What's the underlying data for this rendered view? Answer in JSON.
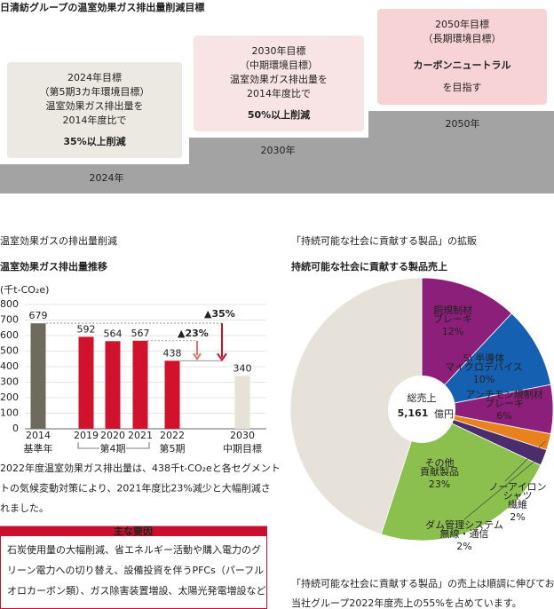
{
  "header": {
    "title": "日清紡グループの温室効果ガス排出量削減目標"
  },
  "targets": [
    {
      "year": "2024年",
      "lines": [
        "2024年目標",
        "（第5期3カ年環境目標）",
        "温室効果ガス排出量を",
        "2014年度比で"
      ],
      "goal": "35%以上削減"
    },
    {
      "year": "2030年",
      "lines": [
        "2030年目標",
        "（中期環境目標）",
        "温室効果ガス排出量を",
        "2014年度比で"
      ],
      "goal": "50%以上削減"
    },
    {
      "year": "2050年",
      "lines": [
        "2050年目標",
        "（長期環境目標）"
      ],
      "goal": "カーボンニュートラル",
      "after": "を目指す"
    }
  ],
  "chart_data": [
    {
      "type": "bar",
      "section_title": "温室効果ガスの排出量削減",
      "title": "温室効果ガス排出量推移",
      "unit_label": "(千t-CO₂e)",
      "categories": [
        "2014",
        "2019",
        "2020",
        "2021",
        "2022",
        "2030"
      ],
      "values": [
        679,
        592,
        564,
        567,
        438,
        340
      ],
      "colors": [
        "#6e6a5c",
        "#d0122c",
        "#d0122c",
        "#d0122c",
        "#d0122c",
        "#e6e2d8"
      ],
      "ylim": [
        0,
        800
      ],
      "yticks": [
        0,
        100,
        200,
        300,
        400,
        500,
        600,
        700,
        800
      ],
      "grid": true,
      "category_notes": [
        "基準年",
        "第4期",
        "第5期",
        "中期目標"
      ],
      "annotations": [
        "▲23%",
        "▲35%"
      ]
    },
    {
      "type": "pie",
      "section_title": "「持続可能な社会に貢献する製品」の拡販",
      "title": "持続可能な社会に貢献する製品売上",
      "center": {
        "label": "総売上",
        "value": "5,161",
        "unit": "億円"
      },
      "categories": [
        [
          "銅規制材",
          "ブレーキ"
        ],
        [
          "Si 半導体",
          "マイクロデバイス"
        ],
        [
          "アンチモン規制材",
          "ブレーキ"
        ],
        [
          "ノーアイロン",
          "シャツ",
          "繊維"
        ],
        [
          "ダム管理システム",
          "無線・通信"
        ],
        [
          "その他",
          "貢献製品"
        ],
        null
      ],
      "values": [
        12,
        10,
        6,
        2,
        2,
        23,
        45
      ],
      "value_labels": [
        "12%",
        "10%",
        "6%",
        "2%",
        "2%",
        "23%",
        null
      ],
      "colors": [
        "#8c1f7a",
        "#1560b0",
        "#8c1f7a",
        "#e8821e",
        "#4b2d6e",
        "#8bbf4e",
        "#e6e2da"
      ]
    }
  ],
  "left_text": {
    "lines": [
      "2022年度温室効果ガス排出量は、438千t-CO₂eと各セグメント",
      "トの気候変動対策により、2021年度比23%減少と大幅削減さ",
      "れました。"
    ]
  },
  "factors": {
    "title": "主な要因",
    "lines": [
      "石炭使用量の大幅削減、省エネルギー活動や購入電力のグ",
      "リーン電力への切り替え、設備投資を伴うPFCs（パーフル",
      "オロカーボン類）、ガス除害装置増設、太陽光発電増設など"
    ]
  },
  "right_text": {
    "lines": [
      "「持続可能な社会に貢献する製品」の売上は順調に伸びており、",
      "当社グループ2022年度売上の55%を占めています。"
    ]
  }
}
